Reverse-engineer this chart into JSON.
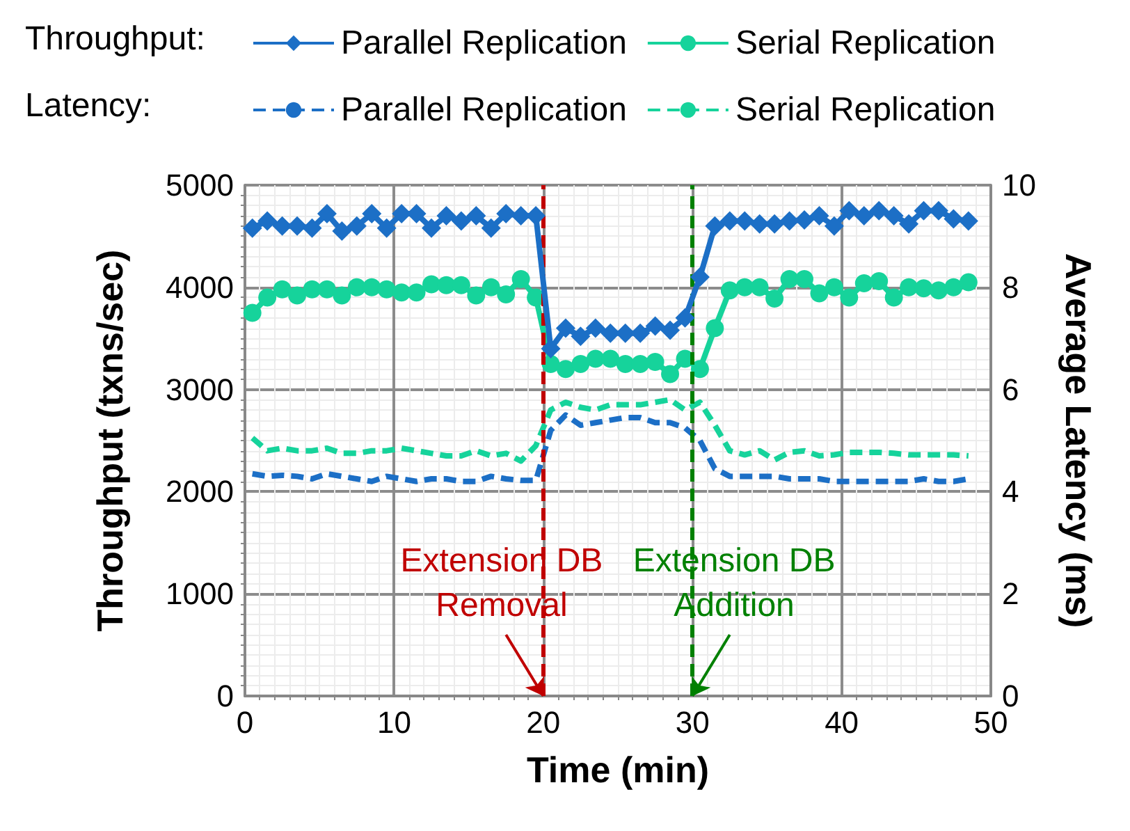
{
  "chart_data": {
    "type": "line",
    "xlabel": "Time (min)",
    "ylabel": "Throughput (txns/sec)",
    "y2label": "Average Latency (ms)",
    "x": [
      0.5,
      1.5,
      2.5,
      3.5,
      4.5,
      5.5,
      6.5,
      7.5,
      8.5,
      9.5,
      10.5,
      11.5,
      12.5,
      13.5,
      14.5,
      15.5,
      16.5,
      17.5,
      18.5,
      19.5,
      20.5,
      21.5,
      22.5,
      23.5,
      24.5,
      25.5,
      26.5,
      27.5,
      28.5,
      29.5,
      30.5,
      31.5,
      32.5,
      33.5,
      34.5,
      35.5,
      36.5,
      37.5,
      38.5,
      39.5,
      40.5,
      41.5,
      42.5,
      43.5,
      44.5,
      45.5,
      46.5,
      47.5,
      48.5
    ],
    "series": [
      {
        "name": "Parallel Replication",
        "color": "#1c6fc6",
        "marker": "diamond",
        "line_style": "solid",
        "values": [
          4580,
          4650,
          4600,
          4600,
          4580,
          4720,
          4550,
          4600,
          4720,
          4580,
          4720,
          4720,
          4580,
          4700,
          4650,
          4700,
          4580,
          4720,
          4700,
          4700,
          3400,
          3600,
          3520,
          3600,
          3550,
          3550,
          3550,
          3620,
          3580,
          3700,
          4100,
          4600,
          4650,
          4650,
          4620,
          4620,
          4650,
          4660,
          4700,
          4600,
          4750,
          4700,
          4750,
          4700,
          4620,
          4750,
          4750,
          4670,
          4650
        ]
      },
      {
        "name": "Serial Replication",
        "color": "#16d39b",
        "marker": "circle",
        "line_style": "solid",
        "values": [
          3750,
          3900,
          3980,
          3920,
          3980,
          3980,
          3920,
          4000,
          4000,
          3980,
          3950,
          3950,
          4030,
          4020,
          4020,
          3920,
          4000,
          3930,
          4080,
          3900,
          3250,
          3200,
          3250,
          3300,
          3300,
          3250,
          3250,
          3270,
          3150,
          3300,
          3200,
          3600,
          3970,
          4000,
          4000,
          3890,
          4080,
          4080,
          3940,
          4000,
          3900,
          4040,
          4060,
          3900,
          4000,
          3990,
          3970,
          4000,
          4050
        ]
      },
      {
        "name": "Parallel Replication",
        "color": "#1c6fc6",
        "marker": "none",
        "line_style": "dashed",
        "axis": "y2",
        "values": [
          4.35,
          4.3,
          4.32,
          4.3,
          4.25,
          4.35,
          4.3,
          4.25,
          4.2,
          4.3,
          4.25,
          4.2,
          4.25,
          4.25,
          4.2,
          4.2,
          4.3,
          4.25,
          4.22,
          4.22,
          5.2,
          5.5,
          5.3,
          5.35,
          5.4,
          5.45,
          5.45,
          5.35,
          5.35,
          5.25,
          5.0,
          4.45,
          4.3,
          4.3,
          4.3,
          4.3,
          4.25,
          4.25,
          4.25,
          4.2,
          4.2,
          4.2,
          4.2,
          4.2,
          4.2,
          4.25,
          4.2,
          4.2,
          4.25
        ]
      },
      {
        "name": "Serial Replication",
        "color": "#16d39b",
        "marker": "none",
        "line_style": "dashed",
        "axis": "y2",
        "values": [
          5.05,
          4.8,
          4.85,
          4.8,
          4.8,
          4.85,
          4.75,
          4.75,
          4.8,
          4.8,
          4.85,
          4.8,
          4.75,
          4.7,
          4.7,
          4.8,
          4.7,
          4.75,
          4.6,
          4.9,
          5.6,
          5.75,
          5.65,
          5.6,
          5.7,
          5.7,
          5.7,
          5.75,
          5.8,
          5.6,
          5.75,
          5.3,
          4.8,
          4.72,
          4.8,
          4.62,
          4.77,
          4.8,
          4.7,
          4.72,
          4.77,
          4.77,
          4.77,
          4.75,
          4.72,
          4.72,
          4.72,
          4.72,
          4.7
        ]
      }
    ],
    "xlim": [
      0,
      50
    ],
    "xticks": [
      0,
      10,
      20,
      30,
      40,
      50
    ],
    "ylim": [
      0,
      5000
    ],
    "yticks": [
      0,
      1000,
      2000,
      3000,
      4000,
      5000
    ],
    "y2lim": [
      0,
      10
    ],
    "y2ticks": [
      0,
      2,
      4,
      6,
      8,
      10
    ],
    "grid": true,
    "legend": "top",
    "ref_lines": [
      {
        "axis": "x",
        "value": 20,
        "label": null,
        "color": "#c00000",
        "line_style": "dashed"
      },
      {
        "axis": "x",
        "value": 30,
        "label": null,
        "color": "#008000",
        "line_style": "dashed"
      }
    ],
    "annotations": [
      "Throughput:",
      "Latency:",
      {
        "text": "Extension DB\nRemoval",
        "x": 20,
        "y": 0
      },
      {
        "text": "Extension DB\nAddition",
        "x": 30,
        "y": 0
      }
    ]
  }
}
